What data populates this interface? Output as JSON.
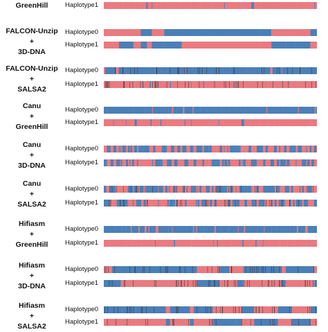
{
  "colors": {
    "red": "#e97a80",
    "blue": "#4b7fb7",
    "tick": "#333333"
  },
  "panels": [
    {
      "method": [
        "GreenHill"
      ],
      "tracks": [
        {
          "label": "Haplotype1",
          "pattern": "R",
          "ticks": false
        }
      ]
    },
    {
      "method": [
        "FALCON-Unzip",
        "+",
        "3D-DNA"
      ],
      "tracks": [
        {
          "label": "Haplotype0",
          "pattern": "blocks",
          "ticks": false
        },
        {
          "label": "Haplotype1",
          "pattern": "blocks-inv",
          "ticks": false
        }
      ]
    },
    {
      "method": [
        "FALCON-Unzip",
        "+",
        "SALSA2"
      ],
      "tracks": [
        {
          "label": "Haplotype0",
          "pattern": "B",
          "ticks": true
        },
        {
          "label": "Haplotype1",
          "pattern": "R",
          "ticks": true
        }
      ]
    },
    {
      "method": [
        "Canu",
        "+",
        "GreenHill"
      ],
      "tracks": [
        {
          "label": "Haplotype0",
          "pattern": "B",
          "ticks": false
        },
        {
          "label": "Haplotype1",
          "pattern": "R",
          "ticks": false
        }
      ]
    },
    {
      "method": [
        "Canu",
        "+",
        "3D-DNA"
      ],
      "tracks": [
        {
          "label": "Haplotype0",
          "pattern": "mix",
          "ticks": false
        },
        {
          "label": "Haplotype1",
          "pattern": "mix-inv",
          "ticks": false
        }
      ]
    },
    {
      "method": [
        "Canu",
        "+",
        "SALSA2"
      ],
      "tracks": [
        {
          "label": "Haplotype0",
          "pattern": "mix",
          "ticks": true
        },
        {
          "label": "Haplotype1",
          "pattern": "mix-inv",
          "ticks": true
        }
      ]
    },
    {
      "method": [
        "Hifiasm",
        "+",
        "GreenHill"
      ],
      "tracks": [
        {
          "label": "Haplotype0",
          "pattern": "B",
          "ticks": false
        },
        {
          "label": "Haplotype1",
          "pattern": "R",
          "ticks": false
        }
      ]
    },
    {
      "method": [
        "Hifiasm",
        "+",
        "3D-DNA"
      ],
      "tracks": [
        {
          "label": "Haplotype0",
          "pattern": "blocks",
          "ticks": true
        },
        {
          "label": "Haplotype1",
          "pattern": "blocks-inv",
          "ticks": true
        }
      ]
    },
    {
      "method": [
        "Hifiasm",
        "+",
        "SALSA2"
      ],
      "tracks": [
        {
          "label": "Haplotype0",
          "pattern": "blocks",
          "ticks": true
        },
        {
          "label": "Haplotype1",
          "pattern": "blocks-inv",
          "ticks": true
        }
      ]
    }
  ]
}
